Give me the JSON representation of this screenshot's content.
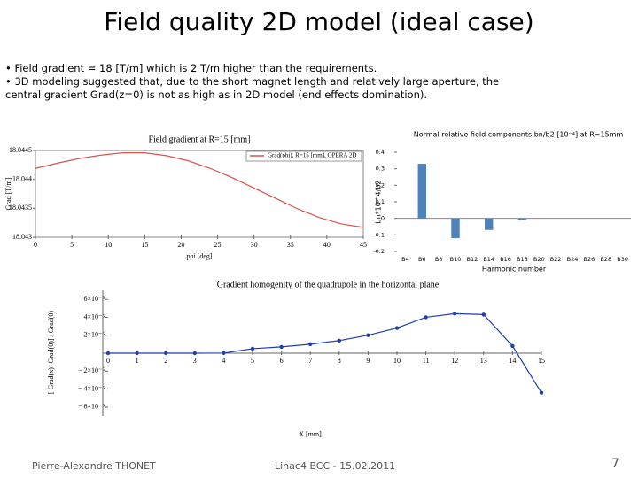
{
  "header": {
    "title": "Field quality 2D model (ideal case)"
  },
  "bullets": [
    "Field gradient = 18 [T/m] which is  2 T/m higher than the requirements.",
    "3D modeling suggested that, due to the short magnet length and relatively large aperture, the central gradient Grad(z=0) is not as high as in 2D model (end effects domination)."
  ],
  "chart_data": [
    {
      "type": "line",
      "title": "Field gradient at R=15 [mm]",
      "x_label": "phi [deg]",
      "y_label": "Grad [T/m]",
      "x": [
        0,
        3,
        6,
        9,
        12,
        15,
        18,
        21,
        24,
        27,
        30,
        33,
        36,
        39,
        42,
        45
      ],
      "series": [
        {
          "name": "Grad(phi), R=15 [mm], OPERA 2D",
          "color": "#d9534f",
          "values": [
            18.04419,
            18.04428,
            18.04436,
            18.04442,
            18.04446,
            18.04446,
            18.04441,
            18.04432,
            18.04419,
            18.04403,
            18.04385,
            18.04367,
            18.04349,
            18.04334,
            18.04323,
            18.04317
          ]
        }
      ],
      "xlim": [
        0,
        45
      ],
      "xticks": [
        0,
        5,
        10,
        15,
        20,
        25,
        30,
        35,
        40,
        45
      ],
      "ylim": [
        18.043,
        18.0445
      ],
      "yticks": [
        18.043,
        18.0435,
        18.044,
        18.0445
      ],
      "legend": "top-right",
      "markers": false
    },
    {
      "type": "bar",
      "title": "Normal  relative field components bn/b2 [10⁻⁴] at R=15mm",
      "x_label": "Harmonic number",
      "y_label": "bn*10^4/b2",
      "categories": [
        "B4",
        "B6",
        "B8",
        "B10",
        "B12",
        "B14",
        "B16",
        "B18",
        "B20",
        "B22",
        "B24",
        "B26",
        "B28",
        "B30"
      ],
      "values": [
        0,
        0.33,
        0,
        -0.12,
        0,
        -0.07,
        0,
        -0.01,
        0,
        0,
        0,
        0,
        0,
        0
      ],
      "color": "#4f81bd",
      "ylim": [
        -0.2,
        0.4
      ],
      "yticks": [
        -0.2,
        -0.1,
        0,
        0.1,
        0.2,
        0.3,
        0.4
      ]
    },
    {
      "type": "line",
      "title": "Gradient homogenity of the quadrupole in the horizontal plane",
      "x_label": "X [mm]",
      "y_label": "[ Grad(x)- Grad(0)] / Grad(0)",
      "x": [
        0,
        1,
        2,
        3,
        4,
        5,
        6,
        7,
        8,
        9,
        10,
        11,
        12,
        13,
        14,
        15
      ],
      "series": [
        {
          "name": null,
          "color": "#1f3fb0",
          "values": [
            0,
            0,
            0,
            0,
            1.6e-07,
            5e-06,
            7e-06,
            1e-05,
            1.4e-05,
            2e-05,
            2.8e-05,
            4e-05,
            4.4e-05,
            4.3e-05,
            8e-06,
            -4.4e-05
          ]
        }
      ],
      "xlim": [
        0,
        15
      ],
      "xticks": [
        0,
        1,
        2,
        3,
        4,
        5,
        6,
        7,
        8,
        9,
        10,
        11,
        12,
        13,
        14,
        15
      ],
      "ylim": [
        -7e-05,
        7e-05
      ],
      "yticks": [
        {
          "value": -6e-05,
          "label": "− 6×10⁻⁵"
        },
        {
          "value": -4e-05,
          "label": "− 4×10⁻⁵"
        },
        {
          "value": -2e-05,
          "label": "− 2×10⁻⁵"
        },
        {
          "value": 2e-05,
          "label": "2×10⁻⁵"
        },
        {
          "value": 4e-05,
          "label": "4×10⁻⁵"
        },
        {
          "value": 6e-05,
          "label": "6×10⁻⁵"
        }
      ],
      "markers": true
    }
  ],
  "footer": {
    "author": "Pierre-Alexandre THONET",
    "event": "Linac4 BCC - 15.02.2011",
    "page": "7"
  }
}
